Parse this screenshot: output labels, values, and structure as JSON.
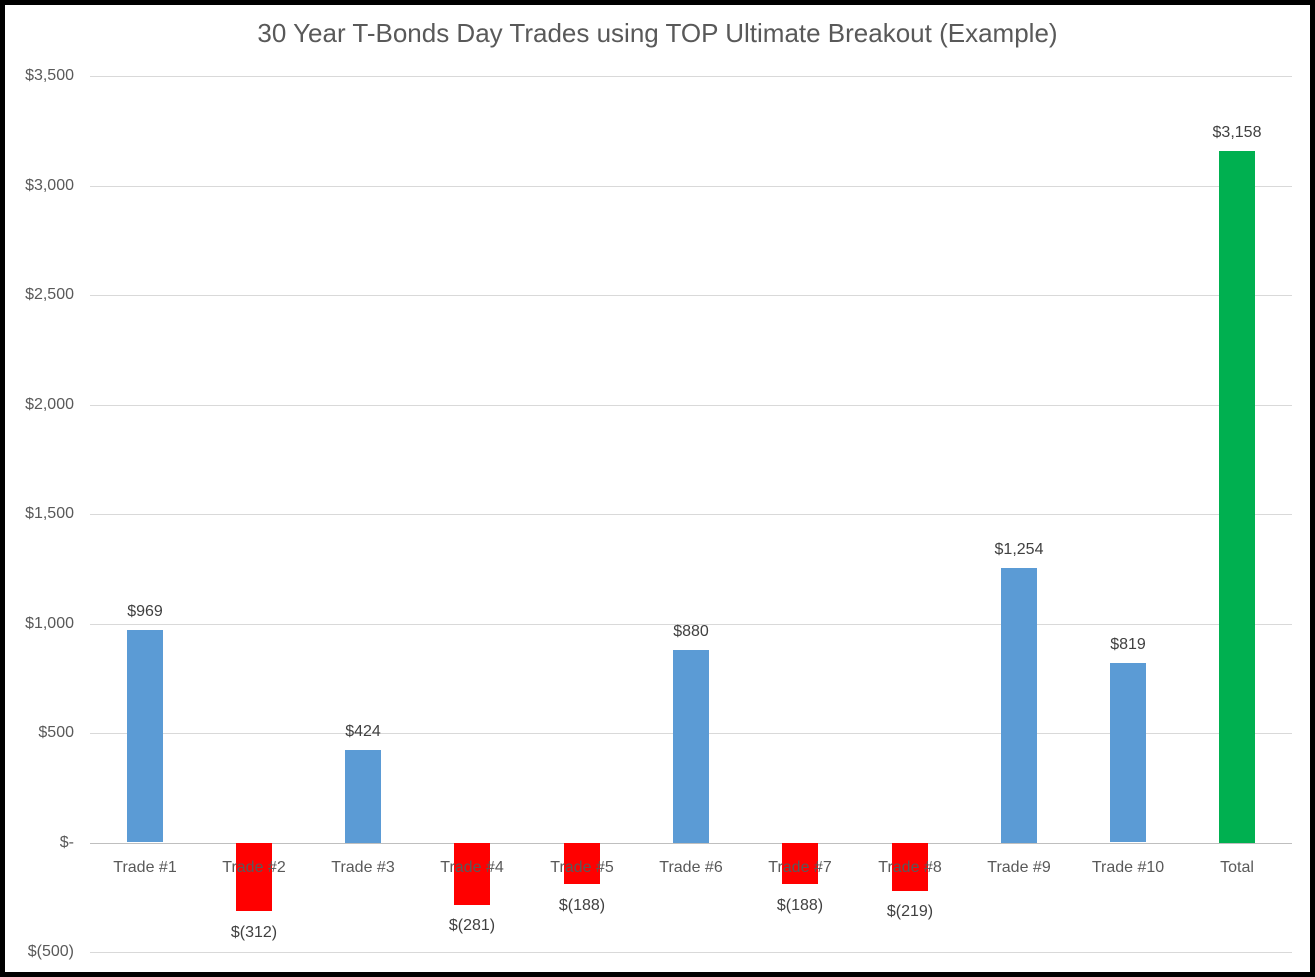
{
  "chart_data": {
    "type": "bar",
    "title": "30 Year T-Bonds Day Trades using TOP Ultimate Breakout (Example)",
    "categories": [
      "Trade #1",
      "Trade #2",
      "Trade #3",
      "Trade #4",
      "Trade #5",
      "Trade #6",
      "Trade #7",
      "Trade #8",
      "Trade #9",
      "Trade #10",
      "Total"
    ],
    "values": [
      969,
      -312,
      424,
      -281,
      -188,
      880,
      -188,
      -219,
      1254,
      819,
      3158
    ],
    "data_labels": [
      "$969",
      "$(312)",
      "$424",
      "$(281)",
      "$(188)",
      "$880",
      "$(188)",
      "$(219)",
      "$1,254",
      "$819",
      "$3,158"
    ],
    "bar_colors": [
      "#5B9BD5",
      "#FF0000",
      "#5B9BD5",
      "#FF0000",
      "#FF0000",
      "#5B9BD5",
      "#FF0000",
      "#FF0000",
      "#5B9BD5",
      "#5B9BD5",
      "#00B050"
    ],
    "color_roles": {
      "positive": "#5B9BD5",
      "negative": "#FF0000",
      "total": "#00B050"
    },
    "y_axis": {
      "range": [
        -500,
        3500
      ],
      "ticks": [
        {
          "value": 3500,
          "label": "$3,500"
        },
        {
          "value": 3000,
          "label": "$3,000"
        },
        {
          "value": 2500,
          "label": "$2,500"
        },
        {
          "value": 2000,
          "label": "$2,000"
        },
        {
          "value": 1500,
          "label": "$1,500"
        },
        {
          "value": 1000,
          "label": "$1,000"
        },
        {
          "value": 500,
          "label": "$500"
        },
        {
          "value": 0,
          "label": "$-"
        },
        {
          "value": -500,
          "label": "$(500)"
        }
      ]
    },
    "xlabel": "",
    "ylabel": "",
    "grid": true,
    "legend": "none",
    "colors": {
      "title_text": "#595959",
      "axis_text": "#595959",
      "data_label_text": "#404040",
      "gridline": "#D9D9D9",
      "axis_line": "#BFBFBF",
      "background": "#FFFFFF",
      "border": "#000000"
    }
  }
}
